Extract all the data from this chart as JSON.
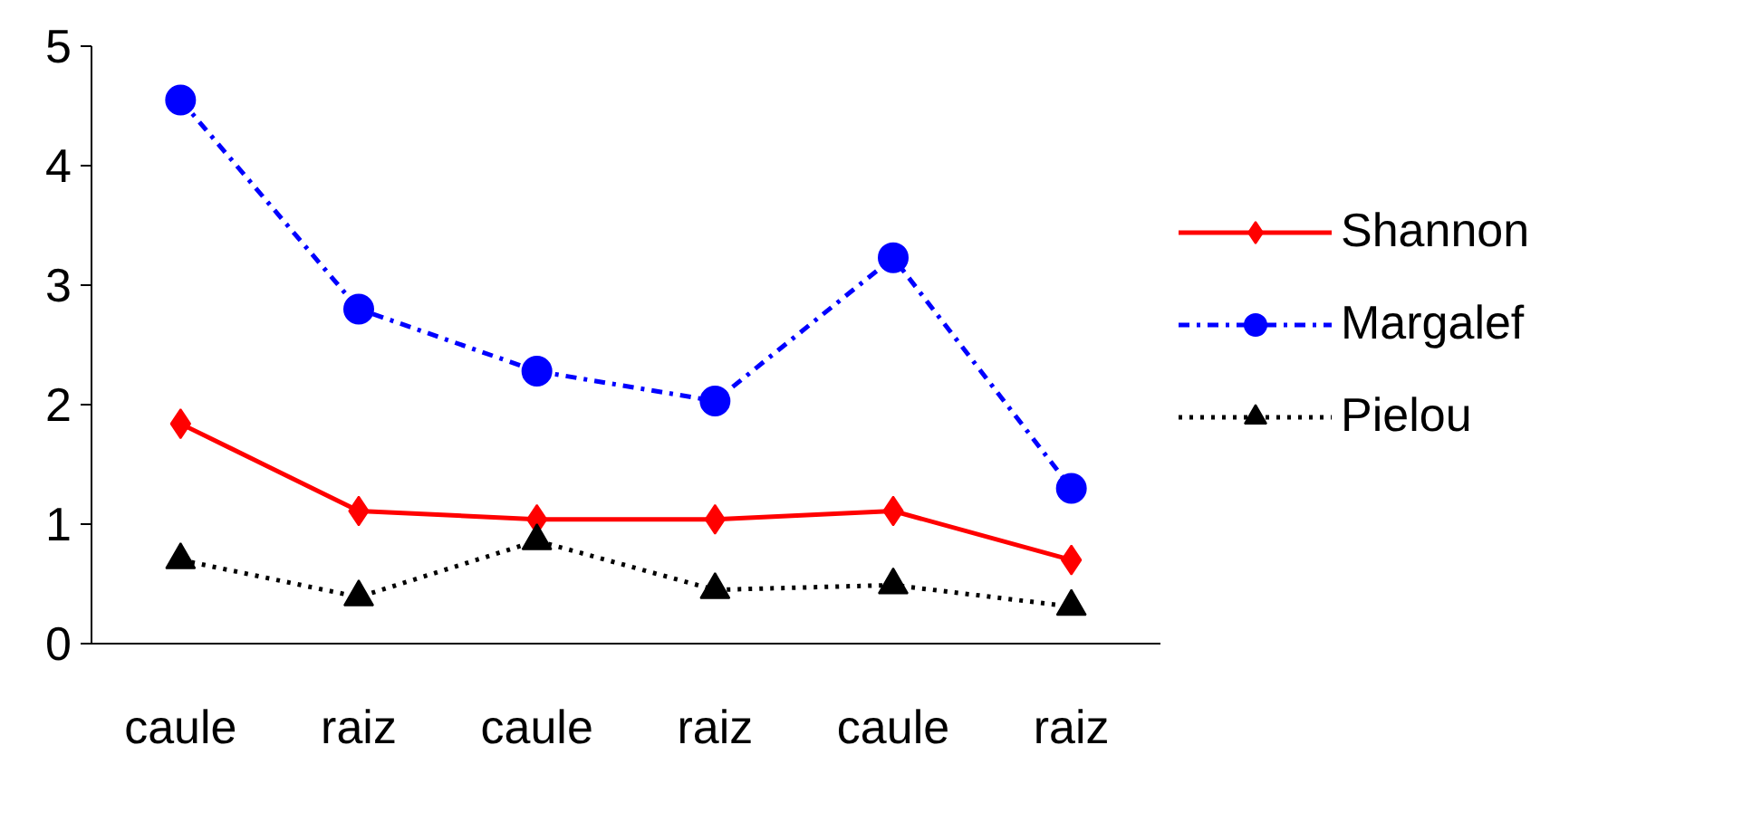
{
  "chart_data": {
    "type": "line",
    "categories": [
      "caule",
      "raiz",
      "caule",
      "raiz",
      "caule",
      "raiz"
    ],
    "series": [
      {
        "name": "Shannon",
        "color": "#ff0000",
        "marker": "diamond",
        "line_style": "solid",
        "values": [
          1.84,
          1.11,
          1.04,
          1.04,
          1.11,
          0.7
        ]
      },
      {
        "name": "Margalef",
        "color": "#0000ff",
        "marker": "circle",
        "line_style": "dashdot",
        "values": [
          4.55,
          2.8,
          2.28,
          2.03,
          3.23,
          1.3
        ]
      },
      {
        "name": "Pielou",
        "color": "#000000",
        "marker": "triangle",
        "line_style": "dotted",
        "values": [
          0.7,
          0.39,
          0.86,
          0.45,
          0.49,
          0.31
        ]
      }
    ],
    "ylim": [
      0,
      5
    ],
    "yticks": [
      0,
      1,
      2,
      3,
      4,
      5
    ],
    "grid": false,
    "legend": "right"
  }
}
